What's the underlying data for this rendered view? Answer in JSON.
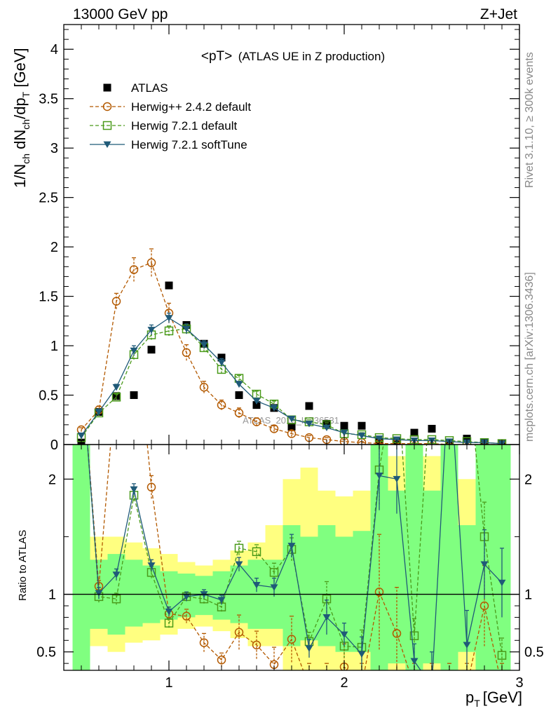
{
  "header": {
    "left": "13000 GeV pp",
    "right": "Z+Jet"
  },
  "side": {
    "rivet": "Rivet 3.1.10, ≥ 300k events",
    "mcplots": "mcplots.cern.ch [arXiv:1306.3436]"
  },
  "chart_data": {
    "type": "scatter",
    "title": "<pT> (ATLAS UE in Z production)",
    "title_main": "<pT>",
    "title_sub": "(ATLAS UE in Z production)",
    "watermark": "ATLAS_2019_I1736531",
    "xlabel": "p",
    "xlabel_sub": "T",
    "xlabel_unit": "[GeV]",
    "ylabel": "1/N",
    "ylabel_sub1": "ch",
    "ylabel_mid": " dN",
    "ylabel_sub2": "ch",
    "ylabel_mid2": "/dp",
    "ylabel_sub3": "T",
    "ylabel_unit": " [GeV]",
    "ratio_ylabel": "Ratio to ATLAS",
    "xlim": [
      0.4,
      3.0
    ],
    "ylim": [
      0,
      4.25
    ],
    "ratio_ylim": [
      0.34,
      2.3
    ],
    "xticks": [
      {
        "v": 1,
        "label": "1"
      },
      {
        "v": 2,
        "label": "2"
      },
      {
        "v": 3,
        "label": "3"
      }
    ],
    "yticks": [
      {
        "v": 0,
        "label": "0"
      },
      {
        "v": 0.5,
        "label": "0.5"
      },
      {
        "v": 1,
        "label": "1"
      },
      {
        "v": 1.5,
        "label": "1.5"
      },
      {
        "v": 2,
        "label": "2"
      },
      {
        "v": 2.5,
        "label": "2.5"
      },
      {
        "v": 3,
        "label": "3"
      },
      {
        "v": 3.5,
        "label": "3.5"
      },
      {
        "v": 4,
        "label": "4"
      }
    ],
    "ratio_yticks": [
      {
        "v": 0.5,
        "label": "0.5"
      },
      {
        "v": 1,
        "label": "1"
      },
      {
        "v": 2,
        "label": "2"
      }
    ],
    "x": [
      0.5,
      0.6,
      0.7,
      0.8,
      0.9,
      1.0,
      1.1,
      1.2,
      1.3,
      1.4,
      1.5,
      1.6,
      1.7,
      1.8,
      1.9,
      2.0,
      2.1,
      2.2,
      2.3,
      2.4,
      2.5,
      2.6,
      2.7,
      2.8,
      2.9
    ],
    "bands": [
      {
        "x0": 0.45,
        "x1": 0.55,
        "g": [
          0.34,
          2.3
        ],
        "y": [
          0.34,
          2.3
        ]
      },
      {
        "x0": 0.55,
        "x1": 0.65,
        "g": [
          0.7,
          1.3
        ],
        "y": [
          0.55,
          1.5
        ]
      },
      {
        "x0": 0.65,
        "x1": 0.75,
        "g": [
          0.65,
          1.35
        ],
        "y": [
          0.5,
          1.5
        ]
      },
      {
        "x0": 0.75,
        "x1": 0.85,
        "g": [
          0.72,
          1.3
        ],
        "y": [
          0.58,
          1.45
        ]
      },
      {
        "x0": 0.85,
        "x1": 0.95,
        "g": [
          0.75,
          1.25
        ],
        "y": [
          0.6,
          1.4
        ]
      },
      {
        "x0": 0.95,
        "x1": 1.05,
        "g": [
          0.78,
          1.2
        ],
        "y": [
          0.65,
          1.35
        ]
      },
      {
        "x0": 1.05,
        "x1": 1.15,
        "g": [
          0.8,
          1.18
        ],
        "y": [
          0.7,
          1.28
        ]
      },
      {
        "x0": 1.15,
        "x1": 1.25,
        "g": [
          0.82,
          1.16
        ],
        "y": [
          0.72,
          1.25
        ]
      },
      {
        "x0": 1.25,
        "x1": 1.35,
        "g": [
          0.78,
          1.2
        ],
        "y": [
          0.68,
          1.3
        ]
      },
      {
        "x0": 1.35,
        "x1": 1.45,
        "g": [
          0.75,
          1.25
        ],
        "y": [
          0.62,
          1.38
        ]
      },
      {
        "x0": 1.45,
        "x1": 1.55,
        "g": [
          0.7,
          1.3
        ],
        "y": [
          0.55,
          1.45
        ]
      },
      {
        "x0": 1.55,
        "x1": 1.65,
        "g": [
          0.7,
          1.3
        ],
        "y": [
          0.55,
          1.6
        ]
      },
      {
        "x0": 1.65,
        "x1": 1.75,
        "g": [
          0.55,
          1.6
        ],
        "y": [
          0.34,
          2.0
        ]
      },
      {
        "x0": 1.75,
        "x1": 1.85,
        "g": [
          0.6,
          1.5
        ],
        "y": [
          0.34,
          2.1
        ]
      },
      {
        "x0": 1.85,
        "x1": 1.95,
        "g": [
          0.55,
          1.6
        ],
        "y": [
          0.34,
          1.9
        ]
      },
      {
        "x0": 1.95,
        "x1": 2.05,
        "g": [
          0.5,
          1.5
        ],
        "y": [
          0.34,
          1.85
        ]
      },
      {
        "x0": 2.05,
        "x1": 2.15,
        "g": [
          0.5,
          1.55
        ],
        "y": [
          0.34,
          1.9
        ]
      },
      {
        "x0": 2.15,
        "x1": 2.25,
        "g": [
          0.34,
          2.3
        ],
        "y": [
          0.34,
          2.3
        ]
      },
      {
        "x0": 2.25,
        "x1": 2.35,
        "g": [
          0.4,
          1.9
        ],
        "y": [
          0.34,
          2.2
        ]
      },
      {
        "x0": 2.35,
        "x1": 2.45,
        "g": [
          0.34,
          2.3
        ],
        "y": [
          0.34,
          2.3
        ]
      },
      {
        "x0": 2.45,
        "x1": 2.55,
        "g": [
          0.4,
          1.9
        ],
        "y": [
          0.34,
          2.2
        ]
      },
      {
        "x0": 2.55,
        "x1": 2.65,
        "g": [
          0.34,
          2.3
        ],
        "y": [
          0.34,
          2.3
        ]
      },
      {
        "x0": 2.65,
        "x1": 2.75,
        "g": [
          0.5,
          1.6
        ],
        "y": [
          0.34,
          2.0
        ]
      },
      {
        "x0": 2.75,
        "x1": 2.85,
        "g": [
          0.34,
          2.3
        ],
        "y": [
          0.34,
          2.3
        ]
      },
      {
        "x0": 2.85,
        "x1": 2.95,
        "g": [
          0.34,
          2.3
        ],
        "y": [
          0.34,
          2.3
        ]
      }
    ],
    "series": [
      {
        "name": "ATLAS",
        "color": "#000000",
        "marker": "square-filled",
        "line": "none",
        "values": [
          0.02,
          0.33,
          0.49,
          0.5,
          0.96,
          1.61,
          1.21,
          1.02,
          0.88,
          0.5,
          0.4,
          0.37,
          0.18,
          0.39,
          0.21,
          0.19,
          0.19,
          0.03,
          0.03,
          0.12,
          0.16,
          0.02,
          0.06,
          0.02,
          0.01
        ]
      },
      {
        "name": "Herwig++ 2.4.2 default",
        "color": "#b35900",
        "marker": "circle-open",
        "line": "dashed",
        "values": [
          0.15,
          0.35,
          1.45,
          1.77,
          1.84,
          1.33,
          0.93,
          0.58,
          0.4,
          0.32,
          0.23,
          0.16,
          0.11,
          0.07,
          0.05,
          0.03,
          0.02,
          0.01,
          0.01,
          0.01,
          0.01,
          0.0,
          0.0,
          0.0,
          0.0
        ],
        "errors": [
          0.02,
          0.04,
          0.08,
          0.12,
          0.14,
          0.1,
          0.08,
          0.06,
          0.05,
          0.05,
          0.04,
          0.03,
          0.03,
          0.02,
          0.02,
          0.02,
          0.01,
          0.01,
          0.01,
          0.01,
          0.01,
          0.01,
          0.01,
          0.01,
          0.01
        ],
        "ratio": [
          3.0,
          1.07,
          2.9,
          3.5,
          1.93,
          0.83,
          0.81,
          0.58,
          0.43,
          0.67,
          0.56,
          0.39,
          0.61,
          0.2,
          0.2,
          0.37,
          0.2,
          1.02,
          0.66,
          0.2,
          0.2,
          0.2,
          0.2,
          0.9,
          0.2
        ],
        "ratio_err": [
          0.1,
          0.05,
          0.1,
          0.1,
          0.1,
          0.06,
          0.06,
          0.08,
          0.06,
          0.15,
          0.12,
          0.15,
          0.2,
          0.2,
          0.2,
          0.2,
          0.2,
          0.5,
          0.4,
          0.2,
          0.2,
          0.2,
          0.2,
          0.35,
          0.2
        ]
      },
      {
        "name": "Herwig 7.2.1 default",
        "color": "#4a9a1a",
        "marker": "square-open",
        "line": "dashed",
        "values": [
          0.07,
          0.32,
          0.48,
          0.91,
          1.11,
          1.15,
          1.17,
          0.98,
          0.76,
          0.67,
          0.51,
          0.41,
          0.25,
          0.23,
          0.2,
          0.11,
          0.1,
          0.07,
          0.06,
          0.05,
          0.05,
          0.04,
          0.03,
          0.02,
          0.01
        ],
        "errors": [
          0.02,
          0.03,
          0.03,
          0.05,
          0.05,
          0.05,
          0.05,
          0.04,
          0.04,
          0.03,
          0.03,
          0.03,
          0.02,
          0.02,
          0.02,
          0.02,
          0.02,
          0.01,
          0.01,
          0.01,
          0.01,
          0.01,
          0.01,
          0.01,
          0.01
        ],
        "ratio": [
          3.0,
          0.98,
          0.96,
          1.86,
          1.19,
          0.75,
          0.98,
          0.96,
          0.89,
          1.4,
          1.37,
          1.19,
          1.39,
          0.59,
          0.96,
          0.55,
          0.54,
          2.08,
          3.0,
          0.64,
          3.0,
          3.0,
          3.0,
          1.5,
          0.47
        ],
        "ratio_err": [
          0.1,
          0.05,
          0.05,
          0.05,
          0.05,
          0.04,
          0.04,
          0.04,
          0.04,
          0.06,
          0.06,
          0.08,
          0.1,
          0.08,
          0.15,
          0.1,
          0.15,
          0.3,
          0.3,
          0.15,
          0.3,
          0.3,
          0.3,
          0.3,
          0.15
        ]
      },
      {
        "name": "Herwig 7.2.1 softTune",
        "color": "#1f5a78",
        "marker": "triangle-down-filled",
        "line": "solid",
        "values": [
          0.09,
          0.33,
          0.58,
          0.95,
          1.16,
          1.28,
          1.17,
          1.01,
          0.83,
          0.61,
          0.44,
          0.37,
          0.26,
          0.21,
          0.17,
          0.12,
          0.09,
          0.06,
          0.05,
          0.04,
          0.04,
          0.03,
          0.02,
          0.02,
          0.01
        ],
        "errors": [
          0.02,
          0.03,
          0.03,
          0.05,
          0.05,
          0.05,
          0.05,
          0.04,
          0.04,
          0.03,
          0.03,
          0.03,
          0.02,
          0.02,
          0.02,
          0.02,
          0.02,
          0.01,
          0.01,
          0.01,
          0.01,
          0.01,
          0.01,
          0.01,
          0.01
        ],
        "ratio": [
          3.0,
          1.01,
          1.17,
          1.91,
          1.25,
          0.85,
          0.98,
          1.0,
          0.95,
          1.26,
          1.08,
          1.06,
          1.42,
          0.53,
          0.8,
          0.65,
          0.48,
          2.03,
          2.0,
          0.42,
          0.2,
          3.0,
          0.56,
          1.26,
          1.1
        ],
        "ratio_err": [
          0.1,
          0.05,
          0.05,
          0.05,
          0.05,
          0.04,
          0.04,
          0.04,
          0.04,
          0.06,
          0.06,
          0.08,
          0.1,
          0.08,
          0.15,
          0.1,
          0.15,
          0.3,
          0.3,
          0.15,
          0.3,
          0.3,
          0.3,
          0.3,
          0.3
        ]
      }
    ]
  }
}
